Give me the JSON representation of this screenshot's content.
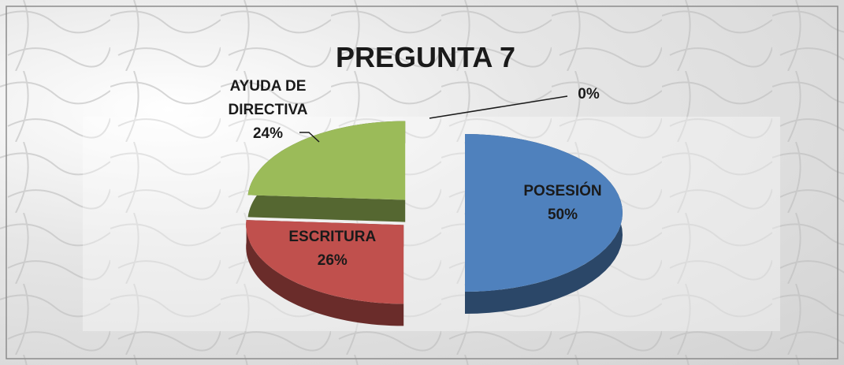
{
  "chart_data": {
    "type": "pie",
    "title": "PREGUNTA 7",
    "categories": [
      "POSESIÓN",
      "ESCRITURA",
      "AYUDA DE DIRECTIVA",
      null
    ],
    "values": [
      50,
      26,
      24,
      0
    ],
    "value_labels": [
      "50%",
      "26%",
      "24%",
      "0%"
    ],
    "colors": [
      "#4f81bd",
      "#c0504d",
      "#9bbb59",
      "#8064a2"
    ]
  }
}
